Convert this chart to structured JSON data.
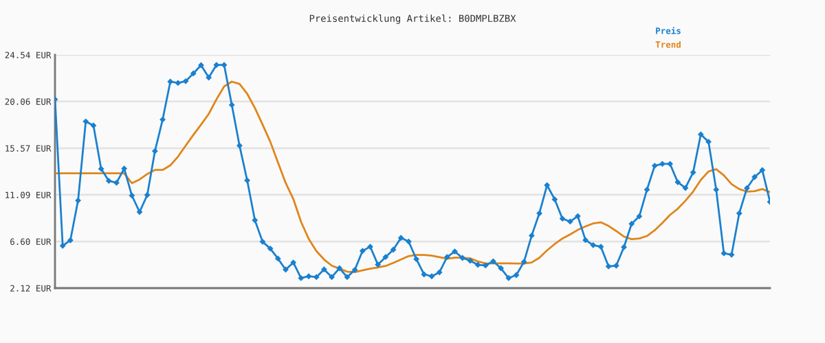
{
  "chart_data": {
    "type": "line",
    "title": "Preisentwicklung Artikel: B0DMPLBZBX",
    "categories": [
      null,
      null,
      null,
      null,
      null,
      null,
      null,
      null,
      null,
      null,
      null,
      null,
      null,
      null,
      null,
      null,
      null,
      null,
      null,
      null,
      null,
      null,
      null,
      null,
      null,
      null,
      null,
      null,
      null,
      null,
      null,
      null,
      null,
      null,
      null,
      null,
      null,
      null,
      null,
      null,
      null,
      null,
      null,
      null,
      null,
      null,
      null,
      null,
      null,
      null,
      null,
      null,
      null,
      null,
      null,
      null,
      null,
      null,
      null,
      null,
      null,
      null,
      null,
      null,
      null,
      null,
      null,
      null,
      null,
      null,
      null,
      null,
      null,
      null,
      null,
      null,
      null,
      null,
      null,
      null,
      null,
      null,
      null,
      null,
      null,
      null,
      null,
      null,
      null,
      null,
      null,
      null,
      null,
      null
    ],
    "series": [
      {
        "name": "Preis",
        "color": "#1a80cf",
        "marker": "diamond",
        "values": [
          20.26,
          6.19,
          6.72,
          10.54,
          18.14,
          17.75,
          13.59,
          12.43,
          12.25,
          13.61,
          11.02,
          9.44,
          11.07,
          15.29,
          18.32,
          21.97,
          21.84,
          22.01,
          22.76,
          23.55,
          22.36,
          23.57,
          23.57,
          19.73,
          15.82,
          12.47,
          8.65,
          6.58,
          5.92,
          4.96,
          3.9,
          4.58,
          3.08,
          3.26,
          3.18,
          3.92,
          3.18,
          4.03,
          3.18,
          3.88,
          5.7,
          6.1,
          4.38,
          5.11,
          5.81,
          6.95,
          6.6,
          4.91,
          3.44,
          3.26,
          3.64,
          5.11,
          5.64,
          5.02,
          4.76,
          4.36,
          4.3,
          4.69,
          4.03,
          3.09,
          3.37,
          4.65,
          7.17,
          9.31,
          12.01,
          10.65,
          8.8,
          8.52,
          9.04,
          6.74,
          6.25,
          6.1,
          4.21,
          4.28,
          6.06,
          8.3,
          9.02,
          11.59,
          13.88,
          14.06,
          14.06,
          12.3,
          11.75,
          13.24,
          16.89,
          16.19,
          11.59,
          5.47,
          5.33,
          9.31,
          11.73,
          12.8,
          13.46,
          10.41
        ]
      },
      {
        "name": "Trend",
        "color": "#e0851a",
        "marker": "none",
        "values": [
          13.15,
          13.15,
          13.15,
          13.15,
          13.15,
          13.15,
          13.15,
          13.15,
          13.15,
          13.15,
          12.21,
          12.56,
          13.09,
          13.48,
          13.48,
          13.92,
          14.76,
          15.82,
          16.85,
          17.84,
          18.87,
          20.26,
          21.51,
          21.97,
          21.75,
          20.8,
          19.44,
          17.84,
          16.19,
          14.21,
          12.23,
          10.69,
          8.5,
          6.85,
          5.68,
          4.87,
          4.28,
          3.99,
          3.7,
          3.66,
          3.83,
          3.99,
          4.1,
          4.25,
          4.54,
          4.87,
          5.2,
          5.31,
          5.31,
          5.25,
          5.09,
          4.94,
          5.04,
          5.04,
          4.98,
          4.69,
          4.48,
          4.5,
          4.5,
          4.5,
          4.48,
          4.48,
          4.58,
          5.04,
          5.75,
          6.36,
          6.89,
          7.28,
          7.72,
          8.05,
          8.34,
          8.45,
          8.1,
          7.61,
          7.07,
          6.83,
          6.89,
          7.13,
          7.68,
          8.38,
          9.16,
          9.75,
          10.52,
          11.4,
          12.52,
          13.33,
          13.55,
          12.96,
          12.12,
          11.64,
          11.4,
          11.44,
          11.64,
          11.35
        ]
      }
    ],
    "ylim": [
      2.12,
      24.54
    ],
    "yticks": [
      {
        "value": 2.12,
        "label": "2.12 EUR"
      },
      {
        "value": 6.6,
        "label": "6.60 EUR"
      },
      {
        "value": 11.09,
        "label": "11.09 EUR"
      },
      {
        "value": 15.57,
        "label": "15.57 EUR"
      },
      {
        "value": 20.06,
        "label": "20.06 EUR"
      },
      {
        "value": 24.54,
        "label": "24.54 EUR"
      }
    ],
    "grid": "y",
    "legend": "top right",
    "tick_labels": "y",
    "line_style": "solid"
  }
}
